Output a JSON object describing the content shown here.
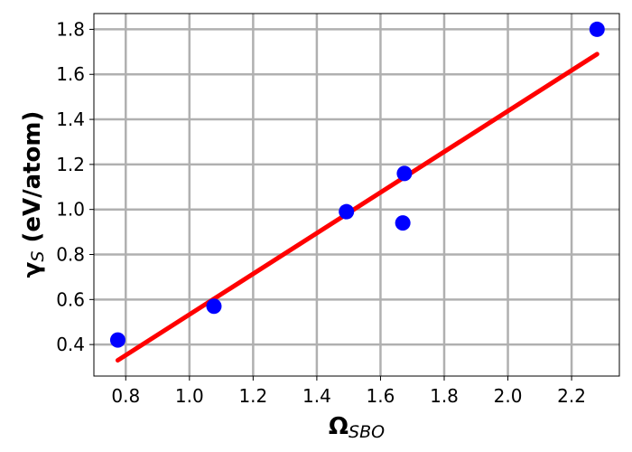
{
  "chart_data": {
    "type": "scatter",
    "title": "",
    "xlabel": {
      "main": "Ω",
      "sub": "SBO"
    },
    "ylabel": {
      "main": "γ",
      "sub": "S",
      "rest": " (eV/atom)"
    },
    "xlim": [
      0.7,
      2.35
    ],
    "ylim": [
      0.26,
      1.87
    ],
    "x_ticks": [
      0.8,
      1.0,
      1.2,
      1.4,
      1.6,
      1.8,
      2.0,
      2.2
    ],
    "x_tick_labels": [
      "0.8",
      "1.0",
      "1.2",
      "1.4",
      "1.6",
      "1.8",
      "2.0",
      "2.2"
    ],
    "y_ticks": [
      0.4,
      0.6,
      0.8,
      1.0,
      1.2,
      1.4,
      1.6,
      1.8
    ],
    "y_tick_labels": [
      "0.4",
      "0.6",
      "0.8",
      "1.0",
      "1.2",
      "1.4",
      "1.6",
      "1.8"
    ],
    "grid": true,
    "legend": "none",
    "series": [
      {
        "kind": "scatter",
        "color": "#0000ff",
        "points": [
          {
            "x": 0.775,
            "y": 0.42
          },
          {
            "x": 1.077,
            "y": 0.57
          },
          {
            "x": 1.493,
            "y": 0.99
          },
          {
            "x": 1.675,
            "y": 1.16
          },
          {
            "x": 1.67,
            "y": 0.94
          },
          {
            "x": 2.28,
            "y": 1.8
          }
        ]
      },
      {
        "kind": "line",
        "color": "#ff0000",
        "points": [
          {
            "x": 0.775,
            "y": 0.33
          },
          {
            "x": 2.28,
            "y": 1.69
          }
        ]
      }
    ],
    "colors": {
      "grid": "#b0b0b0",
      "axes": "#000000"
    }
  }
}
